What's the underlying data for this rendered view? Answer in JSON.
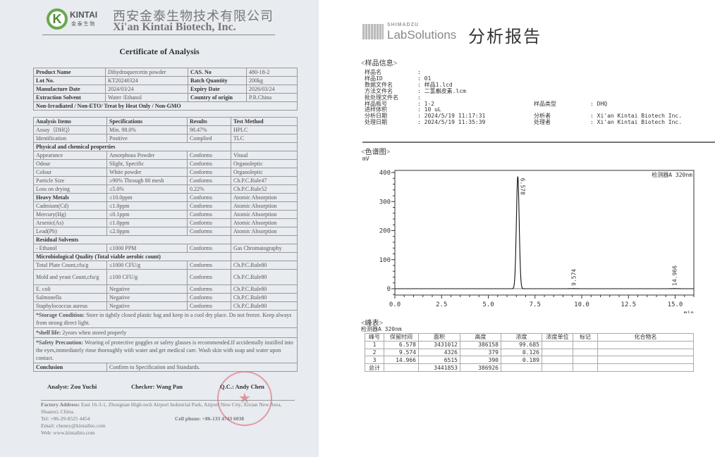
{
  "coa": {
    "company_cn": "西安金泰生物技术有限公司",
    "company_en": "Xi'an Kintai Biotech, Inc.",
    "logo_text": "KINTAI 金泰生物",
    "title": "Certificate of Analysis",
    "header_rows": [
      [
        "Product Name",
        "Dihydroquercetin powder",
        "CAS. No",
        "480-18-2"
      ],
      [
        "Lot No.",
        "KT20240324",
        "Batch Quantity",
        "200kg"
      ],
      [
        "Manufacture Date",
        "2024/03/24",
        "Expiry Date",
        "2026/03/24"
      ],
      [
        "Extraction Solvent",
        "Water /Ethanol",
        "Country of origin",
        "P.R.China"
      ]
    ],
    "compliance": "Non-Irradiated / Non-ETO/ Treat by Heat Only / Non-GMO",
    "analysis_header": [
      "Analysis Items",
      "Specifications",
      "Results",
      "Test Method"
    ],
    "analysis_rows": [
      {
        "cells": [
          "Assay（DHQ）",
          "Min. 98.0%",
          "98.47%",
          "HPLC"
        ]
      },
      {
        "cells": [
          "Identification",
          "Positive",
          "Complied",
          "TLC"
        ]
      },
      {
        "section": "Physical and chemical properties"
      },
      {
        "cells": [
          "Appearance",
          "Amorphous Powder",
          "Conforms",
          "Visual"
        ]
      },
      {
        "cells": [
          "Odour",
          "Slight, Specific",
          "Conforms",
          "Organoleptic"
        ]
      },
      {
        "cells": [
          "Colour",
          "White powder",
          "Conforms",
          "Organoleptic"
        ]
      },
      {
        "cells": [
          "Particle Size",
          "≥90% Through 80 mesh",
          "Conforms",
          "Ch.P.C.Rule47"
        ]
      },
      {
        "cells": [
          "Loss on drying",
          "≤5.0%",
          "0.22%",
          "Ch.P.C.Rule52"
        ]
      },
      {
        "cells": [
          "Heavy Metals",
          "≤10.0ppm",
          "Conforms",
          "Atomic Absorption"
        ],
        "bold_first": true
      },
      {
        "cells": [
          "Cadmium(Cd)",
          "≤1.0ppm",
          "Conforms",
          "Atomic Absorption"
        ]
      },
      {
        "cells": [
          "Mercury(Hg)",
          "≤0.1ppm",
          "Conforms",
          "Atomic Absorption"
        ]
      },
      {
        "cells": [
          "Arsenic(As)",
          "≤1.0ppm",
          "Conforms",
          "Atomic Absorption"
        ]
      },
      {
        "cells": [
          "Lead(Pb)",
          "≤2.0ppm",
          "Conforms",
          "Atomic Absorption"
        ]
      },
      {
        "section": "Residual Solvents"
      },
      {
        "cells": [
          "- Ethanol",
          "≤1000 PPM",
          "Conforms",
          "Gas Chromatography"
        ]
      },
      {
        "section": "Microbiological Quality (Total viable aerobic count)"
      },
      {
        "cells": [
          "Total Plate Count,cfu/g",
          "≤1000 CFU/g",
          "Conforms",
          "Ch.P.C.Rule80"
        ]
      },
      {
        "cells": [
          "Mold and yeast Count,cfu/g",
          "≤100 CFU/g",
          "Conforms",
          "Ch.P.C.Rule80"
        ],
        "tall": true
      },
      {
        "cells": [
          "E. coli",
          "Negative",
          "Conforms",
          "Ch.P.C.Rule80"
        ]
      },
      {
        "cells": [
          "Salmonella",
          "Negative",
          "Conforms",
          "Ch.P.C.Rule80"
        ]
      },
      {
        "cells": [
          "Staphylococcus aureus",
          "Negative",
          "Conforms",
          "Ch.P.C.Rule80"
        ]
      }
    ],
    "storage_label": "*Storage Condition:",
    "storage_text": "Store in tightly closed plastic bag and keep in a cool dry place. Do not freeze. Keep always from strong direct light.",
    "shelf_label": "*shelf life:",
    "shelf_text": "2years when stored properly",
    "safety_label": "*Safety Precaution:",
    "safety_text": "Wearing of protective goggles or safety glasses is recommended.If accidentally instilled into the eyes,immediately rinse thoroughly with water and get medical care. Wash skin with soap and water upon contact.",
    "conclusion_label": "Conclusion",
    "conclusion_text": "Confirm to Specification and Standards.",
    "analyst": "Analyst: Zou Yuchi",
    "checker": "Checker: Wang Pan",
    "qc": "Q.C.: Andy Chen",
    "factory_label": "Factory Address:",
    "factory_text": "East 16-3-1, Zhongnan High-tech Airport Industrial Park, Airport New City, Xixian New Area, Shaanxi, China.",
    "tel": "Tel: +86-29-8525 4454",
    "cell": "Cell phone: +86-133 4743 6038",
    "email": "Email: cheney@kintaibio.com",
    "web": "Web: www.kintaibio.com"
  },
  "report": {
    "brand_small": "SHIMADZU",
    "brand": "LabSolutions",
    "title": "分析报告",
    "sample_info_title": "<样品信息>",
    "info": [
      [
        "样品名",
        ":",
        "",
        ""
      ],
      [
        "样品ID",
        ": 01",
        "",
        ""
      ],
      [
        "数据文件名",
        ": 样品1.lcd",
        "",
        ""
      ],
      [
        "方法文件名",
        ": 二氢槲皮素.lcm",
        "",
        ""
      ],
      [
        "批处理文件名",
        ":",
        "",
        ""
      ],
      [
        "样品瓶号",
        ": 1-2",
        "样品类型",
        ":  DHQ"
      ],
      [
        "进样体积",
        ": 10 uL",
        "",
        ""
      ],
      [
        "分析日期",
        ": 2024/5/19 11:17:31",
        "分析者",
        ":  Xi'an Kintai Biotech Inc."
      ],
      [
        "处理日期",
        ": 2024/5/19 11:35:39",
        "处理者",
        ":  Xi'an Kintai Biotech Inc."
      ]
    ],
    "chromatogram_title": "<色谱图>",
    "peak_table_title": "<峰表>",
    "detector": "检测器A 320nm",
    "peak_header": [
      "峰号",
      "保留时间",
      "面积",
      "高度",
      "浓度",
      "浓度单位",
      "标记",
      "化合物名"
    ],
    "peak_rows": [
      [
        "1",
        "6.578",
        "3431012",
        "386158",
        "99.685",
        "",
        "",
        ""
      ],
      [
        "2",
        "9.574",
        "4326",
        "379",
        "0.126",
        "",
        "",
        ""
      ],
      [
        "3",
        "14.966",
        "6515",
        "390",
        "0.189",
        "",
        "",
        ""
      ],
      [
        "总计",
        "",
        "3441853",
        "386926",
        "",
        "",
        "",
        ""
      ]
    ]
  },
  "chart_data": {
    "type": "line",
    "ylabel": "mV",
    "xlabel": "min",
    "legend": "检测器A 320nm",
    "legend_position": "top-right",
    "xlim": [
      0,
      16
    ],
    "ylim": [
      -20,
      410
    ],
    "xticks": [
      "0.0",
      "2.5",
      "5.0",
      "7.5",
      "10.0",
      "12.5",
      "15.0"
    ],
    "yticks": [
      "0",
      "100",
      "200",
      "300",
      "400"
    ],
    "peaks": [
      {
        "label": "6.578",
        "x": 6.578,
        "y": 386.2
      },
      {
        "label": "9.574",
        "x": 9.574,
        "y": 0.38
      },
      {
        "label": "14.966",
        "x": 14.966,
        "y": 0.39
      }
    ]
  }
}
